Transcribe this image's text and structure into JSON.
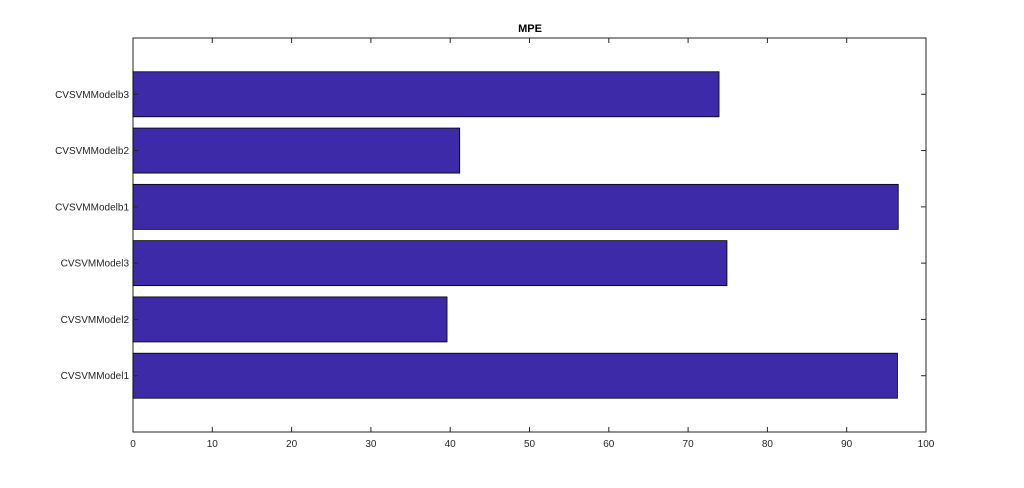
{
  "chart_data": {
    "type": "bar",
    "orientation": "horizontal",
    "title": "MPE",
    "xlabel": "",
    "ylabel": "",
    "categories": [
      "CVSVMModel1",
      "CVSVMModel2",
      "CVSVMModel3",
      "CVSVMModelb1",
      "CVSVMModelb2",
      "CVSVMModelb3"
    ],
    "values": [
      96.4,
      39.6,
      74.9,
      96.5,
      41.2,
      73.9
    ],
    "xlim": [
      0,
      100
    ],
    "xticks": [
      0,
      10,
      20,
      30,
      40,
      50,
      60,
      70,
      80,
      90,
      100
    ],
    "grid": false,
    "legend": "none",
    "bar_color": "#3c2aa8",
    "bar_edge_color": "#000000",
    "axis_color": "#262626"
  }
}
